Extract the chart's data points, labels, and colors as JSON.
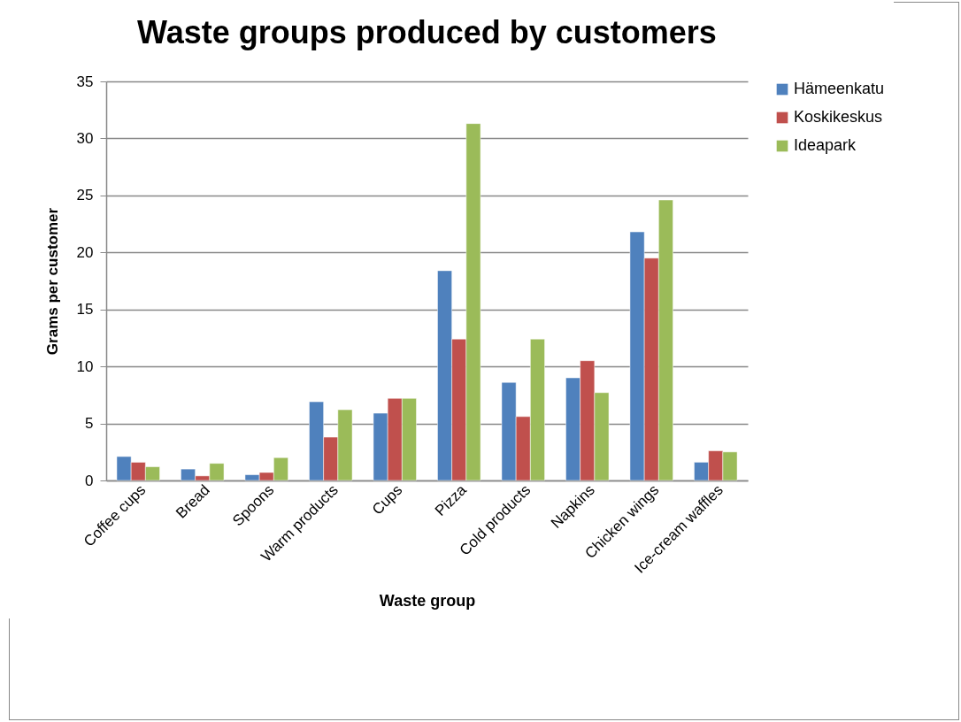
{
  "chart_data": {
    "type": "bar",
    "title": "Waste groups produced by customers",
    "xlabel": "Waste group",
    "ylabel": "Grams per customer",
    "categories": [
      "Coffee cups",
      "Bread",
      "Spoons",
      "Warm products",
      "Cups",
      "Pizza",
      "Cold products",
      "Napkins",
      "Chicken wings",
      "Ice-cream waffles"
    ],
    "series": [
      {
        "name": "Hämeenkatu",
        "color": "#4f81bd",
        "values": [
          2.1,
          1.0,
          0.5,
          6.9,
          5.9,
          18.4,
          8.6,
          9.0,
          21.8,
          1.6
        ]
      },
      {
        "name": "Koskikeskus",
        "color": "#c0504d",
        "values": [
          1.6,
          0.4,
          0.7,
          3.8,
          7.2,
          12.4,
          5.6,
          10.5,
          19.5,
          2.6
        ]
      },
      {
        "name": "Ideapark",
        "color": "#9bbb59",
        "values": [
          1.2,
          1.5,
          2.0,
          6.2,
          7.2,
          31.3,
          12.4,
          7.7,
          24.6,
          2.5
        ]
      }
    ],
    "ylim": [
      0,
      35
    ],
    "yticks": [
      0,
      5,
      10,
      15,
      20,
      25,
      30,
      35
    ],
    "grid": "y",
    "legend": "right"
  }
}
